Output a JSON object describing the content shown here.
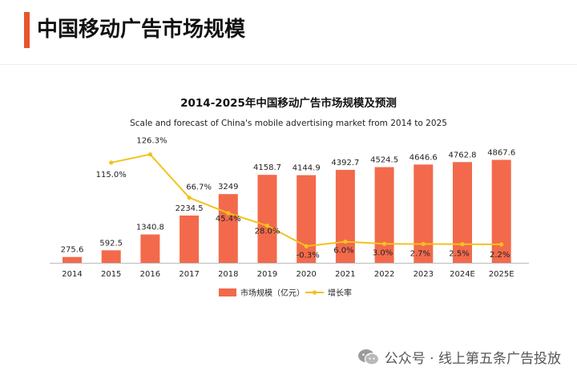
{
  "page": {
    "title": "中国移动广告市场规模"
  },
  "watermark": {
    "icon": "wechat-icon",
    "text": "公众号 · 线上第五条广告投放"
  },
  "colors": {
    "accent": "#e8542b",
    "bar": "#f26a4b",
    "line": "#f2c21b",
    "axis": "#bbbbbb",
    "text": "#222222"
  },
  "chart_data": {
    "type": "bar",
    "title": "2014-2025年中国移动广告市场规模及预测",
    "subtitle": "Scale and forecast of China's mobile advertising market from 2014 to 2025",
    "categories": [
      "2014",
      "2015",
      "2016",
      "2017",
      "2018",
      "2019",
      "2020",
      "2021",
      "2022",
      "2023",
      "2024E",
      "2025E"
    ],
    "series": [
      {
        "name": "市场规模（亿元）",
        "kind": "bar",
        "values": [
          275.6,
          592.5,
          1340.8,
          2234.5,
          3249,
          4158.7,
          4144.9,
          4392.7,
          4524.5,
          4646.6,
          4762.8,
          4867.6
        ],
        "labels": [
          "275.6",
          "592.5",
          "1340.8",
          "2234.5",
          "3249",
          "4158.7",
          "4144.9",
          "4392.7",
          "4524.5",
          "4646.6",
          "4762.8",
          "4867.6"
        ]
      },
      {
        "name": "增长率",
        "kind": "line",
        "values": [
          null,
          115.0,
          126.3,
          66.7,
          45.4,
          28.0,
          -0.3,
          6.0,
          3.0,
          2.7,
          2.5,
          2.2
        ],
        "labels": [
          "",
          "115.0%",
          "126.3%",
          "66.7%",
          "45.4%",
          "28.0%",
          "-0.3%",
          "6.0%",
          "3.0%",
          "2.7%",
          "2.5%",
          "2.2%"
        ]
      }
    ],
    "legend_position": "bottom",
    "grid": false
  }
}
